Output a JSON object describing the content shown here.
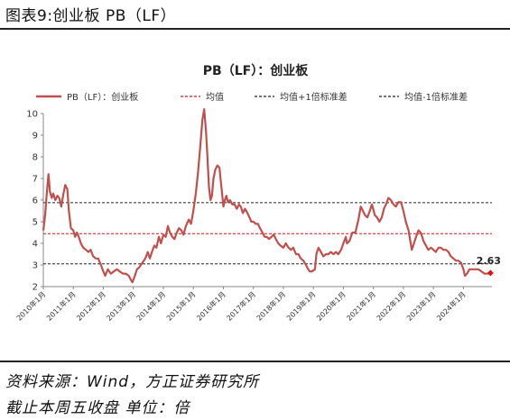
{
  "figure": {
    "caption": "图表9:创业板 PB（LF）",
    "source": "资料来源：Wind，方正证券研究所",
    "note": "截止本周五收盘 单位：倍"
  },
  "colors": {
    "series": "#c0504d",
    "mean": "#e0101a",
    "band": "#222222",
    "end_marker": "#e0101a"
  },
  "chart_data": {
    "type": "line",
    "title": "PB（LF）：创业板",
    "xlabel": "",
    "ylabel": "",
    "ylim": [
      2,
      10
    ],
    "yticks": [
      "2",
      "3",
      "4",
      "5",
      "6",
      "7",
      "8",
      "9",
      "10"
    ],
    "x_tick_labels": [
      "2010年1月",
      "2011年1月",
      "2012年1月",
      "2013年1月",
      "2014年1月",
      "2015年1月",
      "2016年1月",
      "2017年1月",
      "2018年1月",
      "2019年1月",
      "2020年1月",
      "2021年1月",
      "2022年1月",
      "2023年1月",
      "2024年1月"
    ],
    "x_start_year": 2010.0,
    "x_end_year": 2024.95,
    "legend": [
      {
        "label": "PB（LF）：创业板",
        "style": "solid"
      },
      {
        "label": "均值",
        "style": "dashed-red"
      },
      {
        "label": "均值+1倍标准差",
        "style": "dashed-black"
      },
      {
        "label": "均值-1倍标准差",
        "style": "dashed-black"
      }
    ],
    "legend_position": "top",
    "reference_lines": {
      "mean": 4.45,
      "plus_1sd": 5.88,
      "minus_1sd": 3.05
    },
    "end_label": "2.63",
    "series": [
      {
        "name": "PB（LF）：创业板",
        "points": [
          [
            2010.0,
            4.6
          ],
          [
            2010.06,
            5.3
          ],
          [
            2010.12,
            6.4
          ],
          [
            2010.17,
            7.2
          ],
          [
            2010.22,
            6.4
          ],
          [
            2010.28,
            6.1
          ],
          [
            2010.33,
            6.3
          ],
          [
            2010.4,
            6.0
          ],
          [
            2010.47,
            6.2
          ],
          [
            2010.53,
            6.1
          ],
          [
            2010.6,
            5.7
          ],
          [
            2010.67,
            6.3
          ],
          [
            2010.73,
            6.7
          ],
          [
            2010.8,
            6.5
          ],
          [
            2010.85,
            5.5
          ],
          [
            2010.92,
            4.7
          ],
          [
            2011.0,
            4.6
          ],
          [
            2011.06,
            4.3
          ],
          [
            2011.12,
            4.5
          ],
          [
            2011.18,
            4.3
          ],
          [
            2011.25,
            4.0
          ],
          [
            2011.33,
            3.8
          ],
          [
            2011.42,
            3.7
          ],
          [
            2011.5,
            3.6
          ],
          [
            2011.58,
            3.7
          ],
          [
            2011.66,
            3.4
          ],
          [
            2011.75,
            3.3
          ],
          [
            2011.83,
            3.3
          ],
          [
            2011.92,
            3.0
          ],
          [
            2012.0,
            2.7
          ],
          [
            2012.06,
            2.5
          ],
          [
            2012.15,
            2.8
          ],
          [
            2012.25,
            2.6
          ],
          [
            2012.35,
            2.7
          ],
          [
            2012.45,
            2.8
          ],
          [
            2012.55,
            2.7
          ],
          [
            2012.65,
            2.6
          ],
          [
            2012.75,
            2.6
          ],
          [
            2012.85,
            2.5
          ],
          [
            2012.92,
            2.3
          ],
          [
            2012.97,
            2.2
          ],
          [
            2013.05,
            2.5
          ],
          [
            2013.12,
            2.8
          ],
          [
            2013.2,
            2.9
          ],
          [
            2013.3,
            3.1
          ],
          [
            2013.4,
            3.3
          ],
          [
            2013.48,
            3.6
          ],
          [
            2013.55,
            3.3
          ],
          [
            2013.62,
            3.6
          ],
          [
            2013.7,
            3.9
          ],
          [
            2013.77,
            3.8
          ],
          [
            2013.85,
            4.3
          ],
          [
            2013.92,
            4.0
          ],
          [
            2014.0,
            4.4
          ],
          [
            2014.08,
            4.3
          ],
          [
            2014.15,
            4.8
          ],
          [
            2014.22,
            4.5
          ],
          [
            2014.3,
            4.3
          ],
          [
            2014.37,
            4.2
          ],
          [
            2014.45,
            4.5
          ],
          [
            2014.52,
            4.7
          ],
          [
            2014.6,
            4.6
          ],
          [
            2014.67,
            4.4
          ],
          [
            2014.75,
            4.8
          ],
          [
            2014.85,
            5.1
          ],
          [
            2014.92,
            4.9
          ],
          [
            2015.0,
            5.5
          ],
          [
            2015.08,
            6.3
          ],
          [
            2015.15,
            7.2
          ],
          [
            2015.23,
            8.5
          ],
          [
            2015.3,
            9.7
          ],
          [
            2015.36,
            10.2
          ],
          [
            2015.42,
            9.2
          ],
          [
            2015.47,
            8.0
          ],
          [
            2015.52,
            6.6
          ],
          [
            2015.57,
            6.0
          ],
          [
            2015.62,
            6.2
          ],
          [
            2015.67,
            7.0
          ],
          [
            2015.73,
            7.4
          ],
          [
            2015.8,
            7.6
          ],
          [
            2015.87,
            7.5
          ],
          [
            2015.92,
            6.8
          ],
          [
            2016.0,
            5.7
          ],
          [
            2016.05,
            6.0
          ],
          [
            2016.1,
            6.2
          ],
          [
            2016.15,
            5.9
          ],
          [
            2016.22,
            6.0
          ],
          [
            2016.3,
            5.8
          ],
          [
            2016.37,
            5.8
          ],
          [
            2016.45,
            5.6
          ],
          [
            2016.52,
            5.8
          ],
          [
            2016.58,
            5.7
          ],
          [
            2016.65,
            5.4
          ],
          [
            2016.72,
            5.6
          ],
          [
            2016.8,
            5.4
          ],
          [
            2016.87,
            5.2
          ],
          [
            2016.93,
            5.0
          ],
          [
            2017.0,
            5.0
          ],
          [
            2017.08,
            4.9
          ],
          [
            2017.15,
            4.9
          ],
          [
            2017.22,
            4.7
          ],
          [
            2017.3,
            4.5
          ],
          [
            2017.38,
            4.3
          ],
          [
            2017.45,
            4.3
          ],
          [
            2017.52,
            4.2
          ],
          [
            2017.6,
            4.3
          ],
          [
            2017.68,
            4.4
          ],
          [
            2017.75,
            4.2
          ],
          [
            2017.83,
            4.0
          ],
          [
            2017.9,
            3.9
          ],
          [
            2018.0,
            3.8
          ],
          [
            2018.08,
            4.0
          ],
          [
            2018.17,
            3.8
          ],
          [
            2018.25,
            3.7
          ],
          [
            2018.33,
            3.8
          ],
          [
            2018.42,
            3.5
          ],
          [
            2018.5,
            3.5
          ],
          [
            2018.58,
            3.3
          ],
          [
            2018.67,
            3.2
          ],
          [
            2018.75,
            3.0
          ],
          [
            2018.83,
            2.8
          ],
          [
            2018.88,
            2.7
          ],
          [
            2018.95,
            2.7
          ],
          [
            2019.05,
            2.8
          ],
          [
            2019.1,
            3.5
          ],
          [
            2019.17,
            3.8
          ],
          [
            2019.25,
            3.6
          ],
          [
            2019.33,
            3.4
          ],
          [
            2019.42,
            3.5
          ],
          [
            2019.5,
            3.5
          ],
          [
            2019.58,
            3.6
          ],
          [
            2019.67,
            3.5
          ],
          [
            2019.75,
            3.6
          ],
          [
            2019.83,
            3.5
          ],
          [
            2019.92,
            3.7
          ],
          [
            2020.0,
            4.0
          ],
          [
            2020.08,
            4.3
          ],
          [
            2020.12,
            4.0
          ],
          [
            2020.2,
            4.1
          ],
          [
            2020.3,
            4.5
          ],
          [
            2020.4,
            4.5
          ],
          [
            2020.5,
            5.1
          ],
          [
            2020.58,
            5.7
          ],
          [
            2020.65,
            5.5
          ],
          [
            2020.72,
            5.3
          ],
          [
            2020.8,
            5.2
          ],
          [
            2020.88,
            5.5
          ],
          [
            2020.95,
            5.8
          ],
          [
            2021.05,
            5.3
          ],
          [
            2021.12,
            5.2
          ],
          [
            2021.2,
            5.0
          ],
          [
            2021.28,
            5.2
          ],
          [
            2021.35,
            5.6
          ],
          [
            2021.42,
            5.8
          ],
          [
            2021.5,
            6.1
          ],
          [
            2021.58,
            6.0
          ],
          [
            2021.67,
            5.8
          ],
          [
            2021.75,
            5.7
          ],
          [
            2021.83,
            5.9
          ],
          [
            2021.92,
            5.9
          ],
          [
            2022.0,
            5.5
          ],
          [
            2022.08,
            5.0
          ],
          [
            2022.17,
            4.6
          ],
          [
            2022.22,
            4.2
          ],
          [
            2022.28,
            3.7
          ],
          [
            2022.35,
            4.0
          ],
          [
            2022.42,
            4.3
          ],
          [
            2022.5,
            4.6
          ],
          [
            2022.58,
            4.5
          ],
          [
            2022.67,
            4.1
          ],
          [
            2022.75,
            3.9
          ],
          [
            2022.83,
            3.7
          ],
          [
            2022.92,
            3.8
          ],
          [
            2023.0,
            3.7
          ],
          [
            2023.08,
            3.6
          ],
          [
            2023.17,
            3.8
          ],
          [
            2023.25,
            3.8
          ],
          [
            2023.33,
            3.7
          ],
          [
            2023.42,
            3.7
          ],
          [
            2023.5,
            3.6
          ],
          [
            2023.58,
            3.4
          ],
          [
            2023.67,
            3.3
          ],
          [
            2023.75,
            3.2
          ],
          [
            2023.83,
            3.2
          ],
          [
            2023.92,
            3.1
          ],
          [
            2024.0,
            2.8
          ],
          [
            2024.05,
            2.5
          ],
          [
            2024.12,
            2.6
          ],
          [
            2024.2,
            2.8
          ],
          [
            2024.3,
            2.8
          ],
          [
            2024.4,
            2.8
          ],
          [
            2024.5,
            2.8
          ],
          [
            2024.6,
            2.7
          ],
          [
            2024.7,
            2.6
          ],
          [
            2024.8,
            2.6
          ],
          [
            2024.9,
            2.63
          ]
        ]
      }
    ]
  }
}
